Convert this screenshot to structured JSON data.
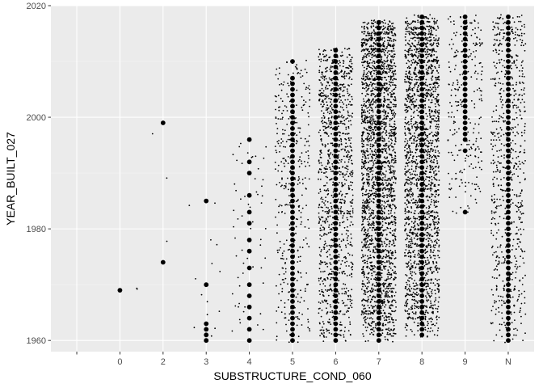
{
  "chart_data": {
    "type": "scatter",
    "subtype": "jitter-strip",
    "xlabel": "SUBSTRUCTURE_COND_060",
    "ylabel": "YEAR_BUILT_027",
    "categories": [
      "",
      "0",
      "2",
      "3",
      "4",
      "5",
      "6",
      "7",
      "8",
      "9",
      "N"
    ],
    "x_scale": "discrete",
    "ylim": [
      1958,
      2020
    ],
    "y_ticks": [
      1960,
      1980,
      2000,
      2020
    ],
    "grid": true,
    "background": "#ebebeb",
    "point_color": "#000000",
    "legend": "none",
    "series": [
      {
        "category": "0",
        "year_range": [
          1969,
          1969
        ],
        "jitter_points": 2,
        "centered_years": [
          1969
        ]
      },
      {
        "category": "2",
        "year_range": [
          1974,
          1999
        ],
        "jitter_points": 3,
        "centered_years": [
          1974,
          1999
        ]
      },
      {
        "category": "3",
        "year_range": [
          1960,
          1985
        ],
        "jitter_points": 14,
        "centered_years": [
          1960,
          1961,
          1962,
          1963,
          1970,
          1985
        ]
      },
      {
        "category": "4",
        "year_range": [
          1960,
          1996
        ],
        "jitter_points": 60,
        "centered_years": [
          1960,
          1962,
          1964,
          1966,
          1968,
          1970,
          1973,
          1976,
          1978,
          1981,
          1983,
          1986,
          1990,
          1992,
          1996
        ]
      },
      {
        "category": "5",
        "year_range": [
          1960,
          2010
        ],
        "jitter_points": 380,
        "centered_years": [
          1960,
          1961,
          1962,
          1963,
          1964,
          1965,
          1966,
          1967,
          1968,
          1969,
          1970,
          1971,
          1972,
          1973,
          1974,
          1975,
          1976,
          1977,
          1978,
          1979,
          1980,
          1981,
          1982,
          1983,
          1984,
          1985,
          1986,
          1987,
          1988,
          1989,
          1990,
          1991,
          1992,
          1993,
          1994,
          1995,
          1996,
          1997,
          1998,
          1999,
          2000,
          2001,
          2002,
          2003,
          2004,
          2005,
          2006,
          2007,
          2010
        ]
      },
      {
        "category": "6",
        "year_range": [
          1960,
          2012
        ],
        "jitter_points": 1100,
        "centered_years": [
          1960,
          1961,
          1962,
          1963,
          1964,
          1965,
          1966,
          1967,
          1968,
          1969,
          1970,
          1971,
          1972,
          1973,
          1974,
          1975,
          1976,
          1977,
          1978,
          1979,
          1980,
          1981,
          1982,
          1983,
          1984,
          1985,
          1986,
          1987,
          1988,
          1989,
          1990,
          1991,
          1992,
          1993,
          1994,
          1995,
          1996,
          1997,
          1998,
          1999,
          2000,
          2001,
          2002,
          2003,
          2004,
          2005,
          2006,
          2007,
          2008,
          2009,
          2010,
          2011,
          2012
        ]
      },
      {
        "category": "7",
        "year_range": [
          1960,
          2017
        ],
        "jitter_points": 2400,
        "centered_years": [
          1960,
          1961,
          1962,
          1963,
          1964,
          1965,
          1966,
          1967,
          1968,
          1969,
          1970,
          1971,
          1972,
          1973,
          1974,
          1975,
          1976,
          1977,
          1978,
          1979,
          1980,
          1981,
          1982,
          1983,
          1984,
          1985,
          1986,
          1987,
          1988,
          1989,
          1990,
          1991,
          1992,
          1993,
          1994,
          1995,
          1996,
          1997,
          1998,
          1999,
          2000,
          2001,
          2002,
          2003,
          2004,
          2005,
          2006,
          2007,
          2008,
          2009,
          2010,
          2011,
          2012,
          2013,
          2014,
          2015,
          2016,
          2017
        ]
      },
      {
        "category": "8",
        "year_range": [
          1961,
          2018
        ],
        "jitter_points": 2000,
        "centered_years": [
          1961,
          1962,
          1963,
          1964,
          1965,
          1966,
          1967,
          1968,
          1969,
          1970,
          1971,
          1972,
          1973,
          1974,
          1975,
          1976,
          1977,
          1978,
          1979,
          1980,
          1981,
          1982,
          1983,
          1984,
          1985,
          1986,
          1987,
          1988,
          1989,
          1990,
          1991,
          1992,
          1993,
          1994,
          1995,
          1996,
          1997,
          1998,
          1999,
          2000,
          2001,
          2002,
          2003,
          2004,
          2005,
          2006,
          2007,
          2008,
          2009,
          2010,
          2011,
          2012,
          2013,
          2014,
          2015,
          2016,
          2017,
          2018
        ]
      },
      {
        "category": "9",
        "year_range": [
          1983,
          2018
        ],
        "jitter_points": 260,
        "centered_years": [
          1983,
          1994,
          1996,
          1997,
          1998,
          1999,
          2000,
          2001,
          2002,
          2003,
          2004,
          2005,
          2006,
          2007,
          2008,
          2009,
          2010,
          2011,
          2012,
          2013,
          2014,
          2015,
          2016,
          2017,
          2018
        ]
      },
      {
        "category": "N",
        "year_range": [
          1960,
          2018
        ],
        "jitter_points": 700,
        "centered_years": [
          1960,
          1961,
          1962,
          1963,
          1964,
          1965,
          1966,
          1967,
          1968,
          1969,
          1970,
          1971,
          1972,
          1973,
          1974,
          1975,
          1976,
          1977,
          1978,
          1979,
          1980,
          1981,
          1982,
          1983,
          1984,
          1985,
          1986,
          1987,
          1988,
          1989,
          1990,
          1991,
          1992,
          1993,
          1994,
          1995,
          1996,
          1997,
          1998,
          1999,
          2000,
          2001,
          2002,
          2003,
          2004,
          2005,
          2006,
          2007,
          2008,
          2009,
          2010,
          2011,
          2012,
          2013,
          2014,
          2015,
          2016,
          2017,
          2018
        ]
      }
    ]
  }
}
